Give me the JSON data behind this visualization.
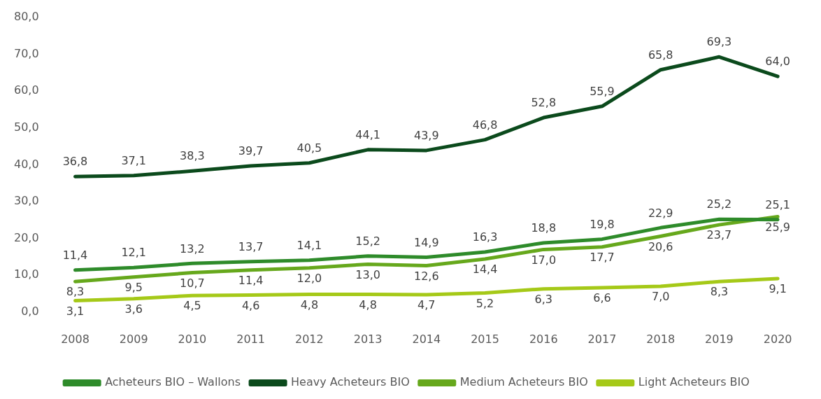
{
  "chart_data": {
    "type": "line",
    "categories": [
      "2008",
      "2009",
      "2010",
      "2011",
      "2012",
      "2013",
      "2014",
      "2015",
      "2016",
      "2017",
      "2018",
      "2019",
      "2020"
    ],
    "ylim": [
      0,
      80
    ],
    "yticks": [
      {
        "value": 0,
        "label": "0,0"
      },
      {
        "value": 10,
        "label": "10,0"
      },
      {
        "value": 20,
        "label": "20,0"
      },
      {
        "value": 30,
        "label": "30,0"
      },
      {
        "value": 40,
        "label": "40,0"
      },
      {
        "value": 50,
        "label": "50,0"
      },
      {
        "value": 60,
        "label": "60,0"
      },
      {
        "value": 70,
        "label": "70,0"
      },
      {
        "value": 80,
        "label": "80,0"
      }
    ],
    "grid": false,
    "legend": "bottom",
    "marker": "none",
    "line_style": "solid",
    "series": [
      {
        "name": "Acheteurs BIO – Wallons",
        "color": "#2e8b2a",
        "values": [
          11.4,
          12.1,
          13.2,
          13.7,
          14.1,
          15.2,
          14.9,
          16.3,
          18.8,
          19.8,
          22.9,
          25.2,
          25.1
        ],
        "value_labels": [
          "11,4",
          "12,1",
          "13,2",
          "13,7",
          "14,1",
          "15,2",
          "14,9",
          "16,3",
          "18,8",
          "19,8",
          "22,9",
          "25,2",
          "25,1"
        ]
      },
      {
        "name": "Heavy Acheteurs BIO",
        "color": "#0b4a1c",
        "values": [
          36.8,
          37.1,
          38.3,
          39.7,
          40.5,
          44.1,
          43.9,
          46.8,
          52.8,
          55.9,
          65.8,
          69.3,
          64.0
        ],
        "value_labels": [
          "36,8",
          "37,1",
          "38,3",
          "39,7",
          "40,5",
          "44,1",
          "43,9",
          "46,8",
          "52,8",
          "55,9",
          "65,8",
          "69,3",
          "64,0"
        ]
      },
      {
        "name": "Medium Acheteurs BIO",
        "color": "#66a81c",
        "values": [
          8.3,
          9.5,
          10.7,
          11.4,
          12.0,
          13.0,
          12.6,
          14.4,
          17.0,
          17.7,
          20.6,
          23.7,
          25.9
        ],
        "value_labels": [
          "8,3",
          "9,5",
          "10,7",
          "11,4",
          "12,0",
          "13,0",
          "12,6",
          "14,4",
          "17,0",
          "17,7",
          "20,6",
          "23,7",
          "25,9"
        ]
      },
      {
        "name": "Light Acheteurs BIO",
        "color": "#a5c918",
        "values": [
          3.1,
          3.6,
          4.5,
          4.6,
          4.8,
          4.8,
          4.7,
          5.2,
          6.3,
          6.6,
          7.0,
          8.3,
          9.1
        ],
        "value_labels": [
          "3,1",
          "3,6",
          "4,5",
          "4,6",
          "4,8",
          "4,8",
          "4,7",
          "5,2",
          "6,3",
          "6,6",
          "7,0",
          "8,3",
          "9,1"
        ]
      }
    ]
  }
}
